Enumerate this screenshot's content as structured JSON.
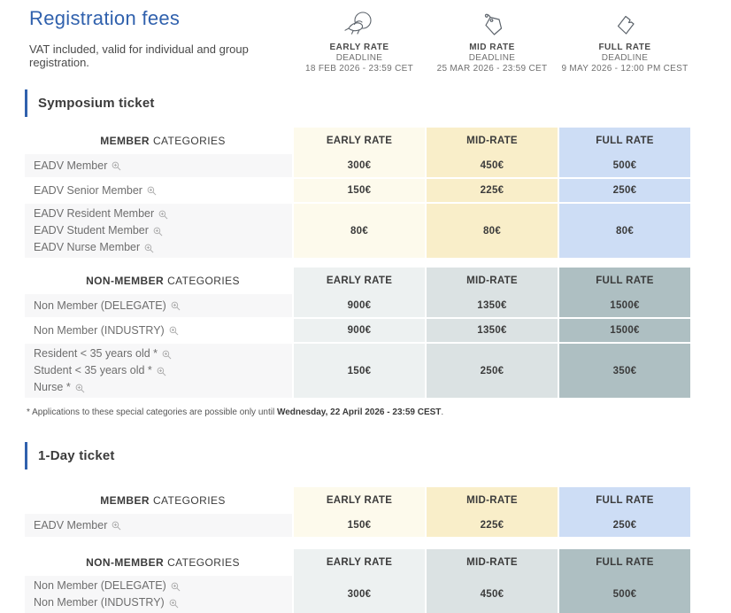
{
  "page": {
    "title": "Registration fees",
    "subtitle": "VAT included, valid for individual and group registration."
  },
  "colors": {
    "accent_blue": "#3061ad",
    "text_dark": "#3b3b3b",
    "label_gray": "#6e6e6e",
    "row_stripe": "#f7f7f8"
  },
  "themes": {
    "member": {
      "columns": [
        "#fdfaec",
        "#f9eec9",
        "#cdddf5"
      ]
    },
    "nonmember": {
      "columns": [
        "#edf1f1",
        "#dbe2e3",
        "#aebfc2"
      ]
    }
  },
  "rate_deadlines": [
    {
      "icon": "early-bird-icon",
      "label": "EARLY RATE",
      "deadline_label": "DEADLINE",
      "deadline": "18 FEB 2026 - 23:59 CET"
    },
    {
      "icon": "price-tag-icon",
      "label": "MID RATE",
      "deadline_label": "DEADLINE",
      "deadline": "25 MAR 2026 - 23:59 CET"
    },
    {
      "icon": "ticket-icon",
      "label": "FULL RATE",
      "deadline_label": "DEADLINE",
      "deadline": "9 MAY 2026 - 12:00 PM CEST"
    }
  ],
  "sections": [
    {
      "id": "symposium-ticket",
      "title": "Symposium ticket",
      "tables": [
        {
          "theme": "member",
          "category_header": {
            "emphasis": "MEMBER",
            "rest": "CATEGORIES"
          },
          "columns": [
            "EARLY RATE",
            "MID-RATE",
            "FULL RATE"
          ],
          "rows": [
            {
              "labels": [
                "EADV Member"
              ],
              "values": [
                "300€",
                "450€",
                "500€"
              ]
            },
            {
              "labels": [
                "EADV Senior Member"
              ],
              "values": [
                "150€",
                "225€",
                "250€"
              ]
            },
            {
              "labels": [
                "EADV Resident Member",
                "EADV Student Member",
                "EADV Nurse Member"
              ],
              "values": [
                "80€",
                "80€",
                "80€"
              ]
            }
          ]
        },
        {
          "theme": "nonmember",
          "category_header": {
            "emphasis": "NON-MEMBER",
            "rest": "CATEGORIES"
          },
          "columns": [
            "EARLY RATE",
            "MID-RATE",
            "FULL RATE"
          ],
          "rows": [
            {
              "labels": [
                "Non Member (DELEGATE)"
              ],
              "values": [
                "900€",
                "1350€",
                "1500€"
              ]
            },
            {
              "labels": [
                "Non Member (INDUSTRY)"
              ],
              "values": [
                "900€",
                "1350€",
                "1500€"
              ]
            },
            {
              "labels": [
                "Resident < 35 years old *",
                "Student < 35 years old *",
                "Nurse *"
              ],
              "values": [
                "150€",
                "250€",
                "350€"
              ]
            }
          ]
        }
      ],
      "footnote": {
        "prefix": "* Applications to these special categories are possible only until ",
        "strong": "Wednesday, 22 April 2026 - 23:59 CEST",
        "suffix": "."
      }
    },
    {
      "id": "one-day-ticket",
      "title": "1-Day ticket",
      "tables": [
        {
          "theme": "member",
          "category_header": {
            "emphasis": "MEMBER",
            "rest": "CATEGORIES"
          },
          "columns": [
            "EARLY RATE",
            "MID-RATE",
            "FULL RATE"
          ],
          "rows": [
            {
              "labels": [
                "EADV Member"
              ],
              "values": [
                "150€",
                "225€",
                "250€"
              ]
            }
          ]
        },
        {
          "theme": "nonmember",
          "category_header": {
            "emphasis": "NON-MEMBER",
            "rest": "CATEGORIES"
          },
          "columns": [
            "EARLY RATE",
            "MID-RATE",
            "FULL RATE"
          ],
          "rows": [
            {
              "labels": [
                "Non Member (DELEGATE)",
                "Non Member (INDUSTRY)"
              ],
              "values": [
                "300€",
                "450€",
                "500€"
              ]
            }
          ]
        }
      ]
    }
  ]
}
